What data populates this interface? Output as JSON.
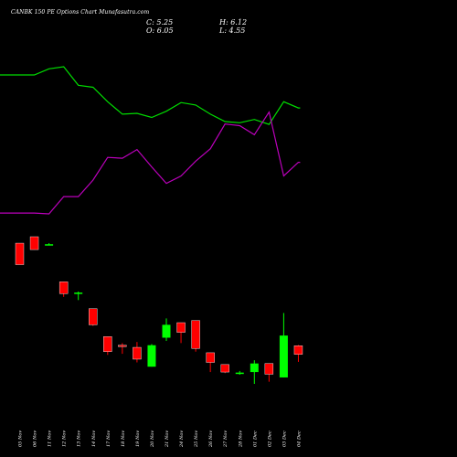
{
  "header": {
    "title": "CANBK 150 PE Options Chart Munafasutra.com",
    "close_label": "C: 5.25",
    "open_label": "O: 6.05",
    "high_label": "H: 6.12",
    "low_label": "L: 4.55"
  },
  "chart_data": {
    "type": "candlestick",
    "title": "CANBK 150 PE Options Chart Munafasutra.com",
    "background": "#000000",
    "up_color": "#00ff00",
    "down_color": "#ff0000",
    "categories": [
      "05 Nov",
      "06 Nov",
      "11 Nov",
      "12 Nov",
      "13 Nov",
      "14 Nov",
      "17 Nov",
      "18 Nov",
      "19 Nov",
      "20 Nov",
      "21 Nov",
      "24 Nov",
      "25 Nov",
      "26 Nov",
      "27 Nov",
      "28 Nov",
      "01 Dec",
      "02 Dec",
      "03 Dec",
      "04 Dec"
    ],
    "ohlc": [
      {
        "o": 15.6,
        "h": 15.6,
        "l": 13.6,
        "c": 13.6
      },
      {
        "o": 16.2,
        "h": 16.2,
        "l": 15.0,
        "c": 15.0
      },
      {
        "o": 15.5,
        "h": 15.6,
        "l": 15.45,
        "c": 15.5
      },
      {
        "o": 12.0,
        "h": 12.0,
        "l": 10.6,
        "c": 10.9
      },
      {
        "o": 10.9,
        "h": 11.1,
        "l": 10.3,
        "c": 11.0
      },
      {
        "o": 9.5,
        "h": 9.5,
        "l": 7.9,
        "c": 8.0
      },
      {
        "o": 6.9,
        "h": 6.9,
        "l": 5.2,
        "c": 5.5
      },
      {
        "o": 6.1,
        "h": 6.3,
        "l": 5.3,
        "c": 6.0
      },
      {
        "o": 5.9,
        "h": 6.4,
        "l": 4.5,
        "c": 4.8
      },
      {
        "o": 4.1,
        "h": 6.2,
        "l": 4.1,
        "c": 6.1
      },
      {
        "o": 6.8,
        "h": 8.6,
        "l": 6.5,
        "c": 8.0
      },
      {
        "o": 8.2,
        "h": 8.2,
        "l": 6.3,
        "c": 7.3
      },
      {
        "o": 8.4,
        "h": 8.4,
        "l": 5.5,
        "c": 5.8
      },
      {
        "o": 5.4,
        "h": 5.4,
        "l": 3.6,
        "c": 4.5
      },
      {
        "o": 4.3,
        "h": 4.3,
        "l": 3.5,
        "c": 3.6
      },
      {
        "o": 3.5,
        "h": 3.7,
        "l": 3.35,
        "c": 3.55
      },
      {
        "o": 3.6,
        "h": 4.7,
        "l": 2.5,
        "c": 4.4
      },
      {
        "o": 4.4,
        "h": 4.4,
        "l": 2.7,
        "c": 3.4
      },
      {
        "o": 3.1,
        "h": 9.1,
        "l": 3.1,
        "c": 7.0
      },
      {
        "o": 6.05,
        "h": 6.12,
        "l": 4.55,
        "c": 5.25
      }
    ],
    "line_series": [
      {
        "color": "#00dd00",
        "values": [
          91.5,
          91.5,
          93.0,
          93.5,
          89.0,
          88.5,
          85.0,
          82.0,
          82.2,
          81.2,
          82.7,
          84.8,
          84.2,
          82.0,
          80.2,
          79.9,
          80.7,
          79.5,
          85.0,
          83.5
        ]
      },
      {
        "color": "#bb00bb",
        "values": [
          58.0,
          58.0,
          57.8,
          62.0,
          62.0,
          66.0,
          71.5,
          71.3,
          73.4,
          69.2,
          65.2,
          67.0,
          70.6,
          73.6,
          79.6,
          79.2,
          77.0,
          82.5,
          67.0,
          70.3
        ]
      }
    ],
    "line_extends_left": true
  }
}
